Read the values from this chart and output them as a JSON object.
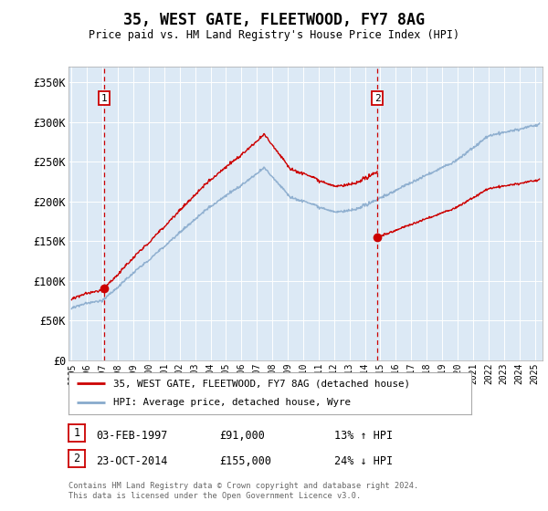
{
  "title": "35, WEST GATE, FLEETWOOD, FY7 8AG",
  "subtitle": "Price paid vs. HM Land Registry's House Price Index (HPI)",
  "ylabel_ticks": [
    "£0",
    "£50K",
    "£100K",
    "£150K",
    "£200K",
    "£250K",
    "£300K",
    "£350K"
  ],
  "ytick_vals": [
    0,
    50000,
    100000,
    150000,
    200000,
    250000,
    300000,
    350000
  ],
  "ylim": [
    0,
    370000
  ],
  "xlim_start": 1994.8,
  "xlim_end": 2025.5,
  "plot_bg_color": "#dce9f5",
  "grid_color": "#ffffff",
  "sale1_x": 1997.09,
  "sale1_y": 91000,
  "sale1_label": "1",
  "sale1_date": "03-FEB-1997",
  "sale1_price": "£91,000",
  "sale1_hpi": "13% ↑ HPI",
  "sale2_x": 2014.81,
  "sale2_y": 155000,
  "sale2_label": "2",
  "sale2_date": "23-OCT-2014",
  "sale2_price": "£155,000",
  "sale2_hpi": "24% ↓ HPI",
  "legend_label1": "35, WEST GATE, FLEETWOOD, FY7 8AG (detached house)",
  "legend_label2": "HPI: Average price, detached house, Wyre",
  "footer": "Contains HM Land Registry data © Crown copyright and database right 2024.\nThis data is licensed under the Open Government Licence v3.0.",
  "line_color_red": "#cc0000",
  "line_color_blue": "#88aacc",
  "vline_color": "#cc0000",
  "box_color": "#cc0000",
  "marker_size": 7
}
